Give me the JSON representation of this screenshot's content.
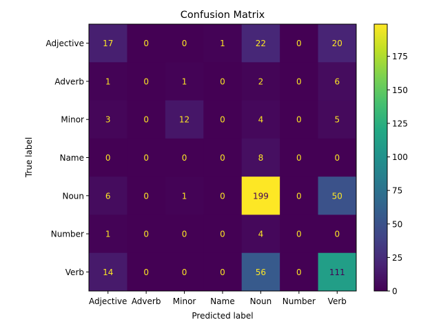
{
  "chart_data": {
    "type": "heatmap",
    "title": "Confusion Matrix",
    "xlabel": "Predicted label",
    "ylabel": "True label",
    "x_categories": [
      "Adjective",
      "Adverb",
      "Minor",
      "Name",
      "Noun",
      "Number",
      "Verb"
    ],
    "y_categories": [
      "Adjective",
      "Adverb",
      "Minor",
      "Name",
      "Noun",
      "Number",
      "Verb"
    ],
    "matrix": [
      [
        17,
        0,
        0,
        1,
        22,
        0,
        20
      ],
      [
        1,
        0,
        1,
        0,
        2,
        0,
        6
      ],
      [
        3,
        0,
        12,
        0,
        4,
        0,
        5
      ],
      [
        0,
        0,
        0,
        0,
        8,
        0,
        0
      ],
      [
        6,
        0,
        1,
        0,
        199,
        0,
        50
      ],
      [
        1,
        0,
        0,
        0,
        4,
        0,
        0
      ],
      [
        14,
        0,
        0,
        0,
        56,
        0,
        111
      ]
    ],
    "colormap": "viridis",
    "color_range": [
      0,
      199
    ],
    "colorbar_ticks": [
      0,
      25,
      50,
      75,
      100,
      125,
      150,
      175
    ],
    "grid": false
  }
}
